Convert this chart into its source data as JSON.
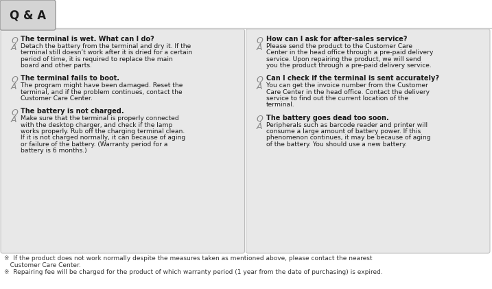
{
  "bg_color": "#ffffff",
  "panel_bg": "#e8e8e8",
  "header_box_bg": "#d4d4d4",
  "header_box_border": "#999999",
  "header_text": "Q & A",
  "divider_color": "#cccccc",
  "text_color": "#1a1a1a",
  "note_color": "#333333",
  "q_font_size": 7.0,
  "a_font_size": 6.6,
  "note_font_size": 6.5,
  "qa_letter_size": 9.0,
  "left_col": {
    "questions": [
      {
        "q": "The terminal is wet. What can I do?",
        "a_lines": [
          "Detach the battery from the terminal and dry it. If the",
          "terminal still doesn’t work after it is dried for a certain",
          "period of time, it is required to replace the main",
          "board and other parts."
        ]
      },
      {
        "q": "The terminal fails to boot.",
        "a_lines": [
          "The program might have been damaged. Reset the",
          "terminal, and if the problem continues, contact the",
          "Customer Care Center."
        ]
      },
      {
        "q": "The battery is not charged.",
        "a_lines": [
          "Make sure that the terminal is properly connected",
          "with the desktop charger, and check if the lamp",
          "works properly. Rub off the charging terminal clean.",
          "If it is not charged normally, it can because of aging",
          "or failure of the battery. (Warranty period for a",
          "battery is 6 months.)"
        ]
      }
    ]
  },
  "right_col": {
    "questions": [
      {
        "q": "How can I ask for after-sales service?",
        "a_lines": [
          "Please send the product to the Customer Care",
          "Center in the head office through a pre-paid delivery",
          "service. Upon repairing the product, we will send",
          "you the product through a pre-paid delivery service."
        ]
      },
      {
        "q": "Can I check if the terminal is sent accurately?",
        "a_lines": [
          "You can get the invoice number from the Customer",
          "Care Center in the head office. Contact the delivery",
          "service to find out the current location of the",
          "terminal."
        ]
      },
      {
        "q": "The battery goes dead too soon.",
        "a_lines": [
          "Peripherals such as barcode reader and printer will",
          "consume a large amount of battery power. If this",
          "phenomenon continues, it may be because of aging",
          "of the battery. You should use a new battery."
        ]
      }
    ]
  },
  "notes": [
    "※  If the product does not work normally despite the measures taken as mentioned above, please contact the nearest",
    "   Customer Care Center.",
    "※  Repairing fee will be charged for the product of which warranty period (1 year from the date of purchasing) is expired."
  ]
}
